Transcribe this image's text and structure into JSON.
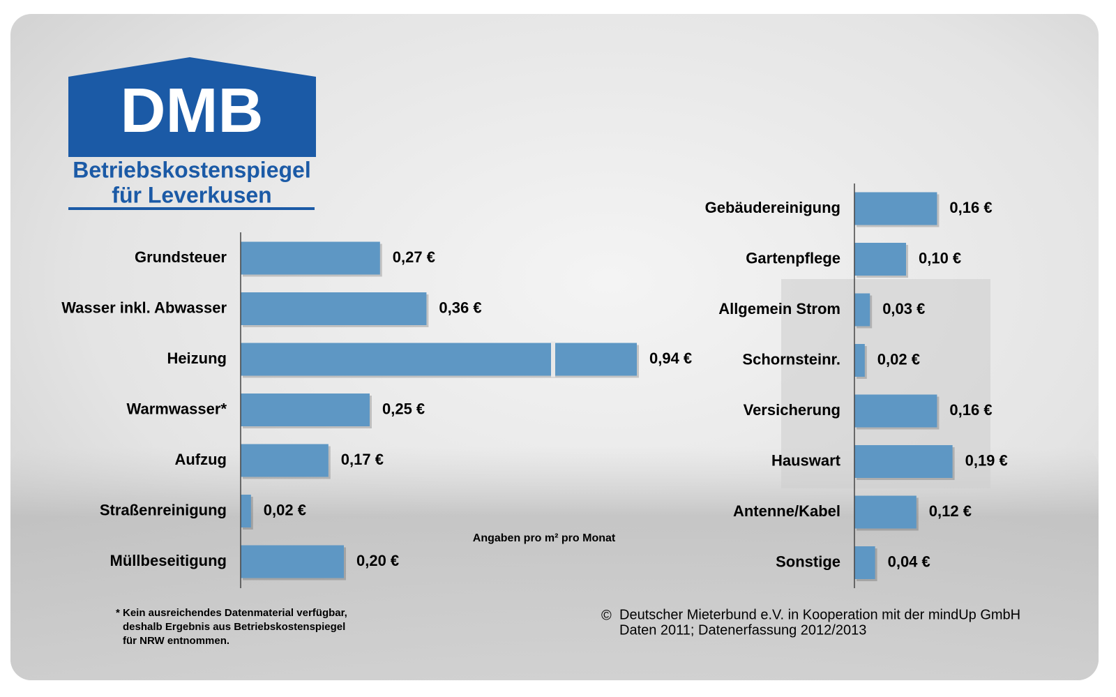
{
  "logo": {
    "title": "DMB",
    "line1": "Betriebskostenspiegel",
    "line2": "für Leverkusen"
  },
  "unit_note": "Angaben pro m² pro Monat",
  "footnote": [
    "* Kein ausreichendes Datenmaterial verfügbar,",
    "deshalb Ergebnis aus Betriebskostenspiegel",
    "für NRW entnommen."
  ],
  "source": [
    "Deutscher Mieterbund e.V. in Kooperation mit der mindUp GmbH",
    "Daten 2011; Datenerfassung 2012/2013"
  ],
  "copyright_symbol": "©",
  "chart_data": [
    {
      "type": "bar",
      "orientation": "horizontal",
      "color": "#5e97c4",
      "categories": [
        "Grundsteuer",
        "Wasser inkl. Abwasser",
        "Heizung",
        "Warmwasser*",
        "Aufzug",
        "Straßenreinigung",
        "Müllbeseitigung"
      ],
      "values": [
        0.27,
        0.36,
        0.94,
        0.25,
        0.17,
        0.02,
        0.2
      ],
      "value_labels": [
        "0,27 €",
        "0,36 €",
        "0,94 €",
        "0,25 €",
        "0,17 €",
        "0,02 €",
        "0,20 €"
      ],
      "xlim": [
        0,
        0.94
      ]
    },
    {
      "type": "bar",
      "orientation": "horizontal",
      "color": "#5e97c4",
      "categories": [
        "Gebäudereinigung",
        "Gartenpflege",
        "Allgemein Strom",
        "Schornsteinr.",
        "Versicherung",
        "Hauswart",
        "Antenne/Kabel",
        "Sonstige"
      ],
      "values": [
        0.16,
        0.1,
        0.03,
        0.02,
        0.16,
        0.19,
        0.12,
        0.04
      ],
      "value_labels": [
        "0,16 €",
        "0,10 €",
        "0,03 €",
        "0,02 €",
        "0,16 €",
        "0,19 €",
        "0,12 €",
        "0,04 €"
      ],
      "xlim": [
        0,
        0.2
      ]
    }
  ]
}
